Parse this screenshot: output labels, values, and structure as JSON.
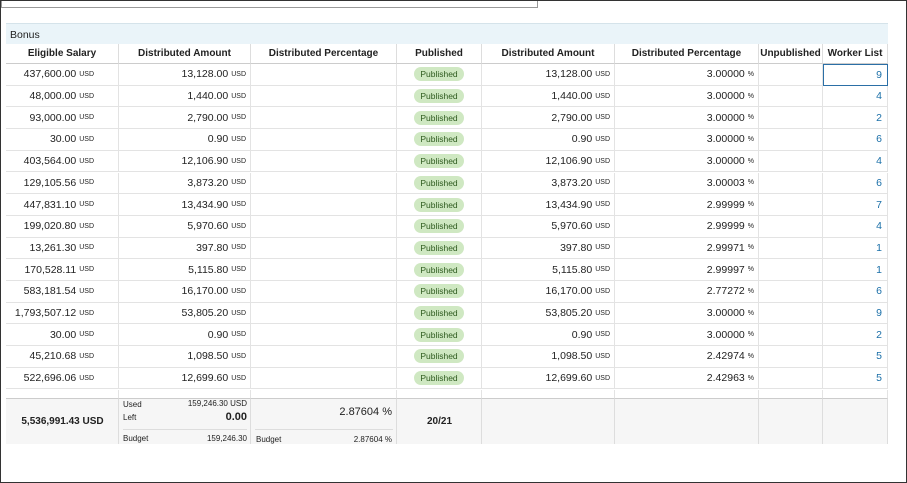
{
  "section_title": "Bonus",
  "columns": [
    "Eligible Salary",
    "Distributed Amount",
    "Distributed Percentage",
    "Published",
    "Distributed Amount",
    "Distributed Percentage",
    "Unpublished",
    "Worker List"
  ],
  "currency": "USD",
  "percent_sign": "%",
  "rows": [
    {
      "eligible_salary": "437,600.00",
      "distributed_amount": "13,128.00",
      "status": "Published",
      "published_amount": "13,128.00",
      "published_percentage": "3.00000",
      "worker_list": "9"
    },
    {
      "eligible_salary": "48,000.00",
      "distributed_amount": "1,440.00",
      "status": "Published",
      "published_amount": "1,440.00",
      "published_percentage": "3.00000",
      "worker_list": "4"
    },
    {
      "eligible_salary": "93,000.00",
      "distributed_amount": "2,790.00",
      "status": "Published",
      "published_amount": "2,790.00",
      "published_percentage": "3.00000",
      "worker_list": "2"
    },
    {
      "eligible_salary": "30.00",
      "distributed_amount": "0.90",
      "status": "Published",
      "published_amount": "0.90",
      "published_percentage": "3.00000",
      "worker_list": "6"
    },
    {
      "eligible_salary": "403,564.00",
      "distributed_amount": "12,106.90",
      "status": "Published",
      "published_amount": "12,106.90",
      "published_percentage": "3.00000",
      "worker_list": "4"
    },
    {
      "eligible_salary": "129,105.56",
      "distributed_amount": "3,873.20",
      "status": "Published",
      "published_amount": "3,873.20",
      "published_percentage": "3.00003",
      "worker_list": "6"
    },
    {
      "eligible_salary": "447,831.10",
      "distributed_amount": "13,434.90",
      "status": "Published",
      "published_amount": "13,434.90",
      "published_percentage": "2.99999",
      "worker_list": "7"
    },
    {
      "eligible_salary": "199,020.80",
      "distributed_amount": "5,970.60",
      "status": "Published",
      "published_amount": "5,970.60",
      "published_percentage": "2.99999",
      "worker_list": "4"
    },
    {
      "eligible_salary": "13,261.30",
      "distributed_amount": "397.80",
      "status": "Published",
      "published_amount": "397.80",
      "published_percentage": "2.99971",
      "worker_list": "1"
    },
    {
      "eligible_salary": "170,528.11",
      "distributed_amount": "5,115.80",
      "status": "Published",
      "published_amount": "5,115.80",
      "published_percentage": "2.99997",
      "worker_list": "1"
    },
    {
      "eligible_salary": "583,181.54",
      "distributed_amount": "16,170.00",
      "status": "Published",
      "published_amount": "16,170.00",
      "published_percentage": "2.77272",
      "worker_list": "6"
    },
    {
      "eligible_salary": "1,793,507.12",
      "distributed_amount": "53,805.20",
      "status": "Published",
      "published_amount": "53,805.20",
      "published_percentage": "3.00000",
      "worker_list": "9"
    },
    {
      "eligible_salary": "30.00",
      "distributed_amount": "0.90",
      "status": "Published",
      "published_amount": "0.90",
      "published_percentage": "3.00000",
      "worker_list": "2"
    },
    {
      "eligible_salary": "45,210.68",
      "distributed_amount": "1,098.50",
      "status": "Published",
      "published_amount": "1,098.50",
      "published_percentage": "2.42974",
      "worker_list": "5"
    },
    {
      "eligible_salary": "522,696.06",
      "distributed_amount": "12,699.60",
      "status": "Published",
      "published_amount": "12,699.60",
      "published_percentage": "2.42963",
      "worker_list": "5"
    }
  ],
  "footer": {
    "total_salary": "5,536,991.43 USD",
    "used_label": "Used",
    "used_value": "159,246.30 USD",
    "left_label": "Left",
    "left_value": "0.00",
    "budget_label": "Budget",
    "budget_value": "159,246.30",
    "percentage": "2.87604 %",
    "percentage_budget_label": "Budget",
    "percentage_budget_value": "2.87604 %",
    "published_count": "20/21"
  }
}
